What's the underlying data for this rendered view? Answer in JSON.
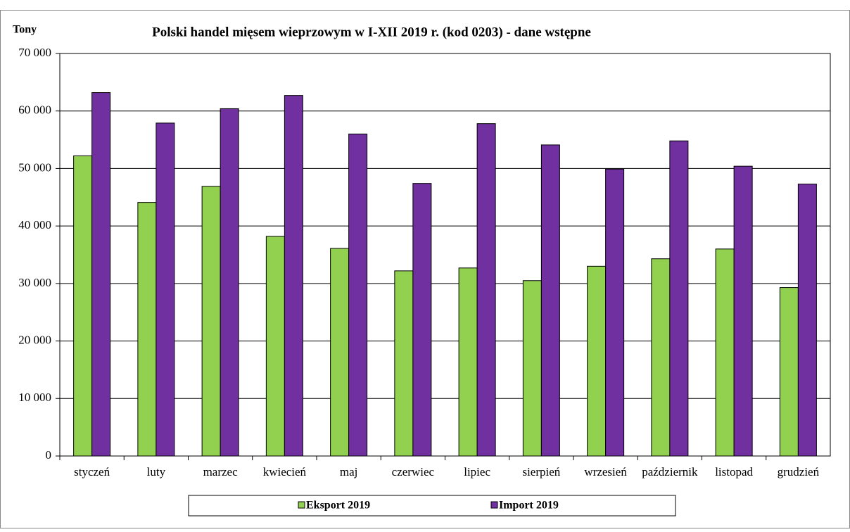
{
  "chart_data": {
    "type": "bar",
    "title": "Polski handel mięsem wieprzowym  w I-XII 2019 r. (kod 0203) - dane wstępne",
    "ylabel": "Tony",
    "categories": [
      "styczeń",
      "luty",
      "marzec",
      "kwiecień",
      "maj",
      "czerwiec",
      "lipiec",
      "sierpień",
      "wrzesień",
      "październik",
      "listopad",
      "grudzień"
    ],
    "series": [
      {
        "name": "Eksport 2019",
        "color": "#92d050",
        "values": [
          52200,
          44100,
          46900,
          38200,
          36100,
          32200,
          32700,
          30500,
          33000,
          34300,
          36000,
          29300
        ]
      },
      {
        "name": "Import 2019",
        "color": "#7030a0",
        "values": [
          63200,
          57900,
          60400,
          62700,
          56000,
          47400,
          57800,
          54100,
          49900,
          54800,
          50400,
          47300
        ]
      }
    ],
    "ylim": [
      0,
      70000
    ],
    "yticks": [
      0,
      {
        "value": 10000,
        "label": "10 000"
      },
      {
        "value": 20000,
        "label": "20 000"
      },
      {
        "value": 30000,
        "label": "30 000"
      },
      {
        "value": 40000,
        "label": "40 000"
      },
      {
        "value": 50000,
        "label": "50 000"
      },
      {
        "value": 60000,
        "label": "60 000"
      },
      {
        "value": 70000,
        "label": "70 000"
      }
    ],
    "grid": true,
    "legend": "bottom"
  }
}
